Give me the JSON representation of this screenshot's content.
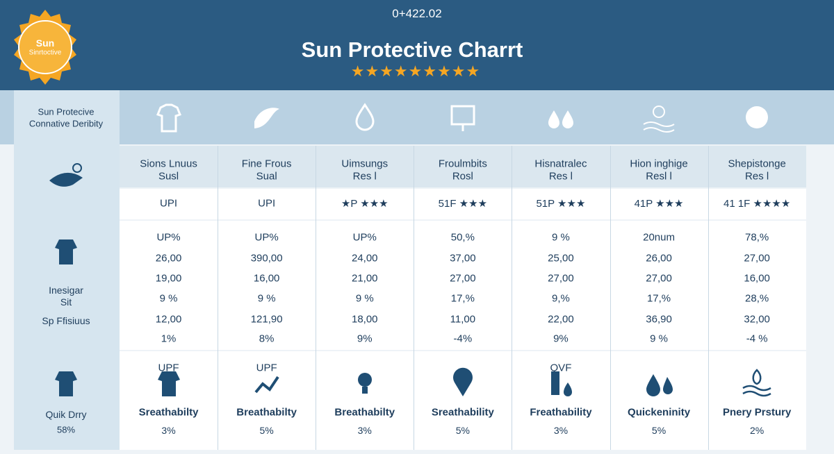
{
  "header": {
    "date": "0+422.02",
    "title": "Sun Protective Charrt",
    "badge": [
      "Sun",
      "Sinrtoctive"
    ]
  },
  "left": {
    "header": [
      "Sun Protecive",
      "Connative Deribity"
    ],
    "middle": [
      "Inesigar",
      "Sit",
      "Sp Ffisiuus"
    ],
    "bottom": [
      "Quik Drry",
      "58%"
    ]
  },
  "columns": [
    {
      "name": [
        "Sions Lnuus",
        "Susl"
      ],
      "rating": "UPI",
      "rows": [
        "UP%",
        "26,00",
        "19,00",
        "9 %",
        "12,00",
        "1%"
      ],
      "bottom": {
        "icon_text": "UPF",
        "label": "Sreathabilty",
        "value": "3%"
      }
    },
    {
      "name": [
        "Fine Frous",
        "Sual"
      ],
      "rating": "UPI",
      "rows": [
        "UP%",
        "390,00",
        "16,00",
        "9 %",
        "121,90",
        "8%"
      ],
      "bottom": {
        "icon_text": "UPF",
        "label": "Breathabilty",
        "value": "5%"
      }
    },
    {
      "name": [
        "Uimsungs",
        "Res l"
      ],
      "rating": "★P ★★★",
      "rows": [
        "UP%",
        "24,00",
        "21,00",
        "9 %",
        "18,00",
        "9%"
      ],
      "bottom": {
        "label": "Breathabilty",
        "value": "3%"
      }
    },
    {
      "name": [
        "Froulmbits",
        "Rosl"
      ],
      "rating": "51F ★★★",
      "rows": [
        "50,%",
        "37,00",
        "27,00",
        "17,%",
        "11,00",
        "-4%"
      ],
      "bottom": {
        "label": "Sreathability",
        "value": "5%"
      }
    },
    {
      "name": [
        "Hisnatralec",
        "Res l"
      ],
      "rating": "51P ★★★",
      "rows": [
        "9 %",
        "25,00",
        "27,00",
        "9,%",
        "22,00",
        "9%"
      ],
      "bottom": {
        "icon_text": "QVF",
        "label": "Freathability",
        "value": "3%"
      }
    },
    {
      "name": [
        "Hion inghige",
        "Resl l"
      ],
      "rating": "41P ★★★",
      "rows": [
        "20num",
        "26,00",
        "27,00",
        "17,%",
        "36,90",
        "9 %"
      ],
      "bottom": {
        "label": "Quickeninity",
        "value": "5%"
      }
    },
    {
      "name": [
        "Shepistonge",
        "Res l"
      ],
      "rating": "41 1F ★★★★",
      "rows": [
        "78,%",
        "27,00",
        "16,00",
        "28,%",
        "32,00",
        "-4 %"
      ],
      "bottom": {
        "label": "Pnery Prstury",
        "value": "2%"
      }
    }
  ]
}
